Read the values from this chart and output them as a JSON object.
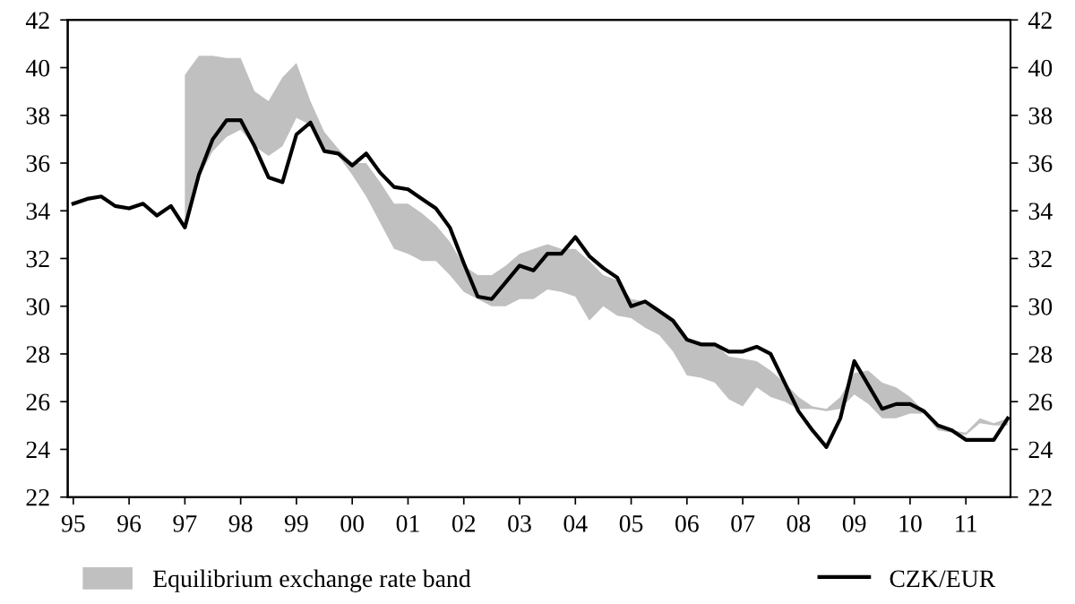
{
  "chart_data": {
    "type": "line",
    "xlim": [
      1994.9,
      2011.8
    ],
    "xticks": [
      {
        "value": 1995,
        "label": "95"
      },
      {
        "value": 1996,
        "label": "96"
      },
      {
        "value": 1997,
        "label": "97"
      },
      {
        "value": 1998,
        "label": "98"
      },
      {
        "value": 1999,
        "label": "99"
      },
      {
        "value": 2000,
        "label": "00"
      },
      {
        "value": 2001,
        "label": "01"
      },
      {
        "value": 2002,
        "label": "02"
      },
      {
        "value": 2003,
        "label": "03"
      },
      {
        "value": 2004,
        "label": "04"
      },
      {
        "value": 2005,
        "label": "05"
      },
      {
        "value": 2006,
        "label": "06"
      },
      {
        "value": 2007,
        "label": "07"
      },
      {
        "value": 2008,
        "label": "08"
      },
      {
        "value": 2009,
        "label": "09"
      },
      {
        "value": 2010,
        "label": "10"
      },
      {
        "value": 2011,
        "label": "11"
      }
    ],
    "ylim": [
      22,
      42
    ],
    "yticks": [
      22,
      24,
      26,
      28,
      30,
      32,
      34,
      36,
      38,
      40,
      42
    ],
    "y2lim": [
      22,
      42
    ],
    "y2ticks": [
      22,
      24,
      26,
      28,
      30,
      32,
      34,
      36,
      38,
      40,
      42
    ],
    "grid": false,
    "legend": "bottom",
    "series": [
      {
        "name": "Equilibrium exchange rate band",
        "type": "area",
        "color": "#c0c0c0",
        "x": [
          1997.0,
          1997.25,
          1997.5,
          1997.75,
          1998.0,
          1998.25,
          1998.5,
          1998.75,
          1999.0,
          1999.25,
          1999.5,
          1999.75,
          2000.0,
          2000.25,
          2000.5,
          2000.75,
          2001.0,
          2001.25,
          2001.5,
          2001.75,
          2002.0,
          2002.25,
          2002.5,
          2002.75,
          2003.0,
          2003.25,
          2003.5,
          2003.75,
          2004.0,
          2004.25,
          2004.5,
          2004.75,
          2005.0,
          2005.25,
          2005.5,
          2005.75,
          2006.0,
          2006.25,
          2006.5,
          2006.75,
          2007.0,
          2007.25,
          2007.5,
          2007.75,
          2008.0,
          2008.25,
          2008.5,
          2008.75,
          2009.0,
          2009.25,
          2009.5,
          2009.75,
          2010.0,
          2010.25,
          2010.5,
          2010.75,
          2011.0,
          2011.25,
          2011.5,
          2011.75
        ],
        "values": [
          null,
          null,
          null,
          null,
          null,
          null,
          null,
          null,
          null,
          null,
          null,
          null,
          null,
          null,
          null,
          null,
          null,
          null,
          null,
          null,
          null,
          null,
          null,
          null,
          null,
          null,
          null,
          null,
          null,
          null,
          null,
          null,
          null,
          null,
          null,
          null,
          null,
          null,
          null,
          null,
          null,
          null,
          null,
          null,
          null,
          null,
          null,
          null,
          null,
          null,
          null,
          null,
          null,
          null,
          null,
          null,
          null,
          null,
          null,
          null
        ],
        "upper": [
          39.7,
          40.5,
          40.5,
          40.4,
          40.4,
          39.0,
          38.6,
          39.6,
          40.2,
          38.6,
          37.3,
          36.6,
          36.0,
          36.0,
          35.2,
          34.3,
          34.3,
          33.9,
          33.4,
          32.7,
          31.7,
          31.3,
          31.3,
          31.7,
          32.2,
          32.4,
          32.6,
          32.4,
          32.4,
          31.9,
          31.3,
          31.1,
          30.3,
          30.2,
          29.8,
          29.4,
          28.6,
          28.5,
          28.4,
          27.9,
          27.8,
          27.7,
          27.3,
          26.8,
          26.2,
          25.8,
          25.7,
          26.2,
          27.2,
          27.3,
          26.8,
          26.6,
          26.2,
          25.6,
          25.0,
          24.8,
          24.7,
          25.3,
          25.1,
          25.3
        ],
        "lower": [
          33.3,
          35.4,
          36.5,
          37.1,
          37.4,
          36.7,
          36.3,
          36.7,
          37.9,
          37.6,
          36.6,
          36.3,
          35.5,
          34.6,
          33.5,
          32.4,
          32.2,
          31.9,
          31.9,
          31.3,
          30.6,
          30.3,
          30.0,
          30.0,
          30.3,
          30.3,
          30.7,
          30.6,
          30.4,
          29.4,
          30.0,
          29.6,
          29.5,
          29.1,
          28.8,
          28.1,
          27.1,
          27.0,
          26.8,
          26.1,
          25.8,
          26.6,
          26.2,
          26.0,
          25.7,
          25.7,
          25.6,
          25.7,
          26.3,
          25.9,
          25.3,
          25.3,
          25.5,
          25.5,
          24.8,
          24.7,
          24.6,
          25.1,
          25.0,
          25.0
        ]
      },
      {
        "name": "CZK/EUR",
        "color": "#000000",
        "x": [
          1995.0,
          1995.25,
          1995.5,
          1995.75,
          1996.0,
          1996.25,
          1996.5,
          1996.75,
          1997.0,
          1997.25,
          1997.5,
          1997.75,
          1998.0,
          1998.25,
          1998.5,
          1998.75,
          1999.0,
          1999.25,
          1999.5,
          1999.75,
          2000.0,
          2000.25,
          2000.5,
          2000.75,
          2001.0,
          2001.25,
          2001.5,
          2001.75,
          2002.0,
          2002.25,
          2002.5,
          2002.75,
          2003.0,
          2003.25,
          2003.5,
          2003.75,
          2004.0,
          2004.25,
          2004.5,
          2004.75,
          2005.0,
          2005.25,
          2005.5,
          2005.75,
          2006.0,
          2006.25,
          2006.5,
          2006.75,
          2007.0,
          2007.25,
          2007.5,
          2007.75,
          2008.0,
          2008.25,
          2008.5,
          2008.75,
          2009.0,
          2009.25,
          2009.5,
          2009.75,
          2010.0,
          2010.25,
          2010.5,
          2010.75,
          2011.0,
          2011.25,
          2011.5,
          2011.75
        ],
        "values": [
          34.3,
          34.5,
          34.6,
          34.2,
          34.1,
          34.3,
          33.8,
          34.2,
          33.3,
          35.5,
          37.0,
          37.8,
          37.8,
          36.7,
          35.4,
          35.2,
          37.2,
          37.7,
          36.5,
          36.4,
          35.9,
          36.4,
          35.6,
          35.0,
          34.9,
          34.5,
          34.1,
          33.3,
          31.8,
          30.4,
          30.3,
          31.0,
          31.7,
          31.5,
          32.2,
          32.2,
          32.9,
          32.1,
          31.6,
          31.2,
          30.0,
          30.2,
          29.8,
          29.4,
          28.6,
          28.4,
          28.4,
          28.1,
          28.1,
          28.3,
          28.0,
          26.8,
          25.6,
          24.8,
          24.1,
          25.3,
          27.7,
          26.7,
          25.7,
          25.9,
          25.9,
          25.6,
          25.0,
          24.8,
          24.4,
          24.4,
          24.4,
          25.3
        ]
      }
    ]
  }
}
